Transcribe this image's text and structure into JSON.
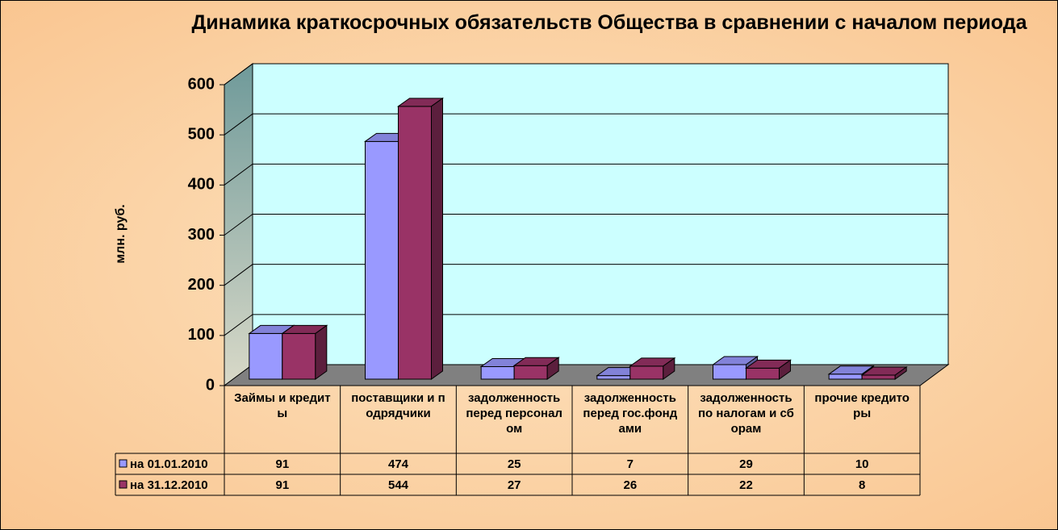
{
  "chart_data": {
    "type": "bar",
    "title": "Динамика краткосрочных обязательств Общества в сравнении  с началом периода",
    "y_label": "млн. руб.",
    "categories": [
      "Займы и кредиты",
      "поставщики и подрядчики",
      "задолженность перед персоналом",
      "задолженность перед гос.фондами",
      "задолженность по налогам и сборам",
      "прочие кредиторы"
    ],
    "series": [
      {
        "name": "на 01.01.2010",
        "color": "#9999ff",
        "values": [
          91,
          474,
          25,
          7,
          29,
          10
        ]
      },
      {
        "name": "на 31.12.2010",
        "color": "#993366",
        "values": [
          91,
          544,
          27,
          26,
          22,
          8
        ]
      }
    ],
    "ylim": [
      0,
      600
    ],
    "yticks": [
      0,
      100,
      200,
      300,
      400,
      500,
      600
    ],
    "grid": true
  }
}
